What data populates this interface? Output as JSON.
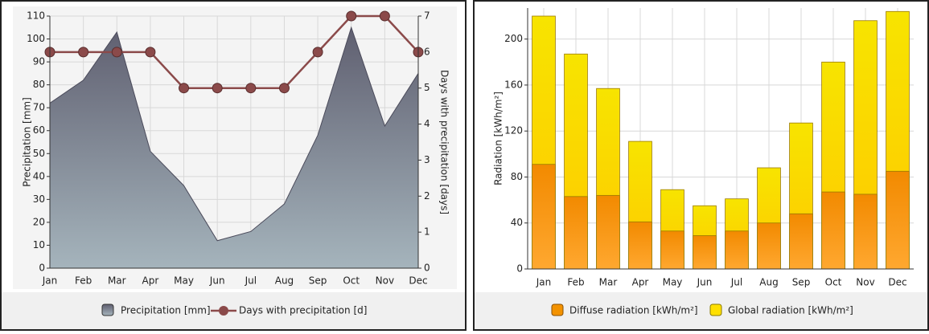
{
  "chart_data": [
    {
      "type": "area",
      "y_label": "Precipitation [mm]",
      "y2_label": "Days with precipitation [days]",
      "categories": [
        "Jan",
        "Feb",
        "Mar",
        "Apr",
        "May",
        "Jun",
        "Jul",
        "Aug",
        "Sep",
        "Oct",
        "Nov",
        "Dec"
      ],
      "series": [
        {
          "name": "Precipitation [mm]",
          "type": "area",
          "color": "#7a7f90",
          "values": [
            72,
            82,
            103,
            51,
            36,
            12,
            16,
            28,
            58,
            105,
            62,
            85
          ]
        },
        {
          "name": "Days with precipitation [d]",
          "type": "line",
          "axis": "y2",
          "color": "#8b4a4a",
          "values": [
            6,
            6,
            6,
            6,
            5,
            5,
            5,
            5,
            6,
            7,
            7,
            6
          ]
        }
      ],
      "ylim": [
        0,
        110
      ],
      "yticks": [
        0,
        10,
        20,
        30,
        40,
        50,
        60,
        70,
        80,
        90,
        100,
        110
      ],
      "y2lim": [
        0,
        7
      ],
      "y2ticks": [
        0,
        1,
        2,
        3,
        4,
        5,
        6,
        7
      ],
      "grid": true
    },
    {
      "type": "bar",
      "y_label": "Radiation [kWh/m²]",
      "categories": [
        "Jan",
        "Feb",
        "Mar",
        "Apr",
        "May",
        "Jun",
        "Jul",
        "Aug",
        "Sep",
        "Oct",
        "Nov",
        "Dec"
      ],
      "series": [
        {
          "name": "Diffuse radiation [kWh/m²]",
          "color": "#f39200",
          "values": [
            91,
            63,
            64,
            41,
            33,
            29,
            33,
            40,
            48,
            67,
            65,
            85
          ]
        },
        {
          "name": "Global radiation [kWh/m²]",
          "color": "#ffe000",
          "values": [
            220,
            187,
            157,
            111,
            69,
            55,
            61,
            88,
            127,
            180,
            216,
            224
          ]
        }
      ],
      "ylim": [
        0,
        227
      ],
      "yticks": [
        0,
        40,
        80,
        120,
        160,
        200
      ],
      "grid": true
    }
  ]
}
